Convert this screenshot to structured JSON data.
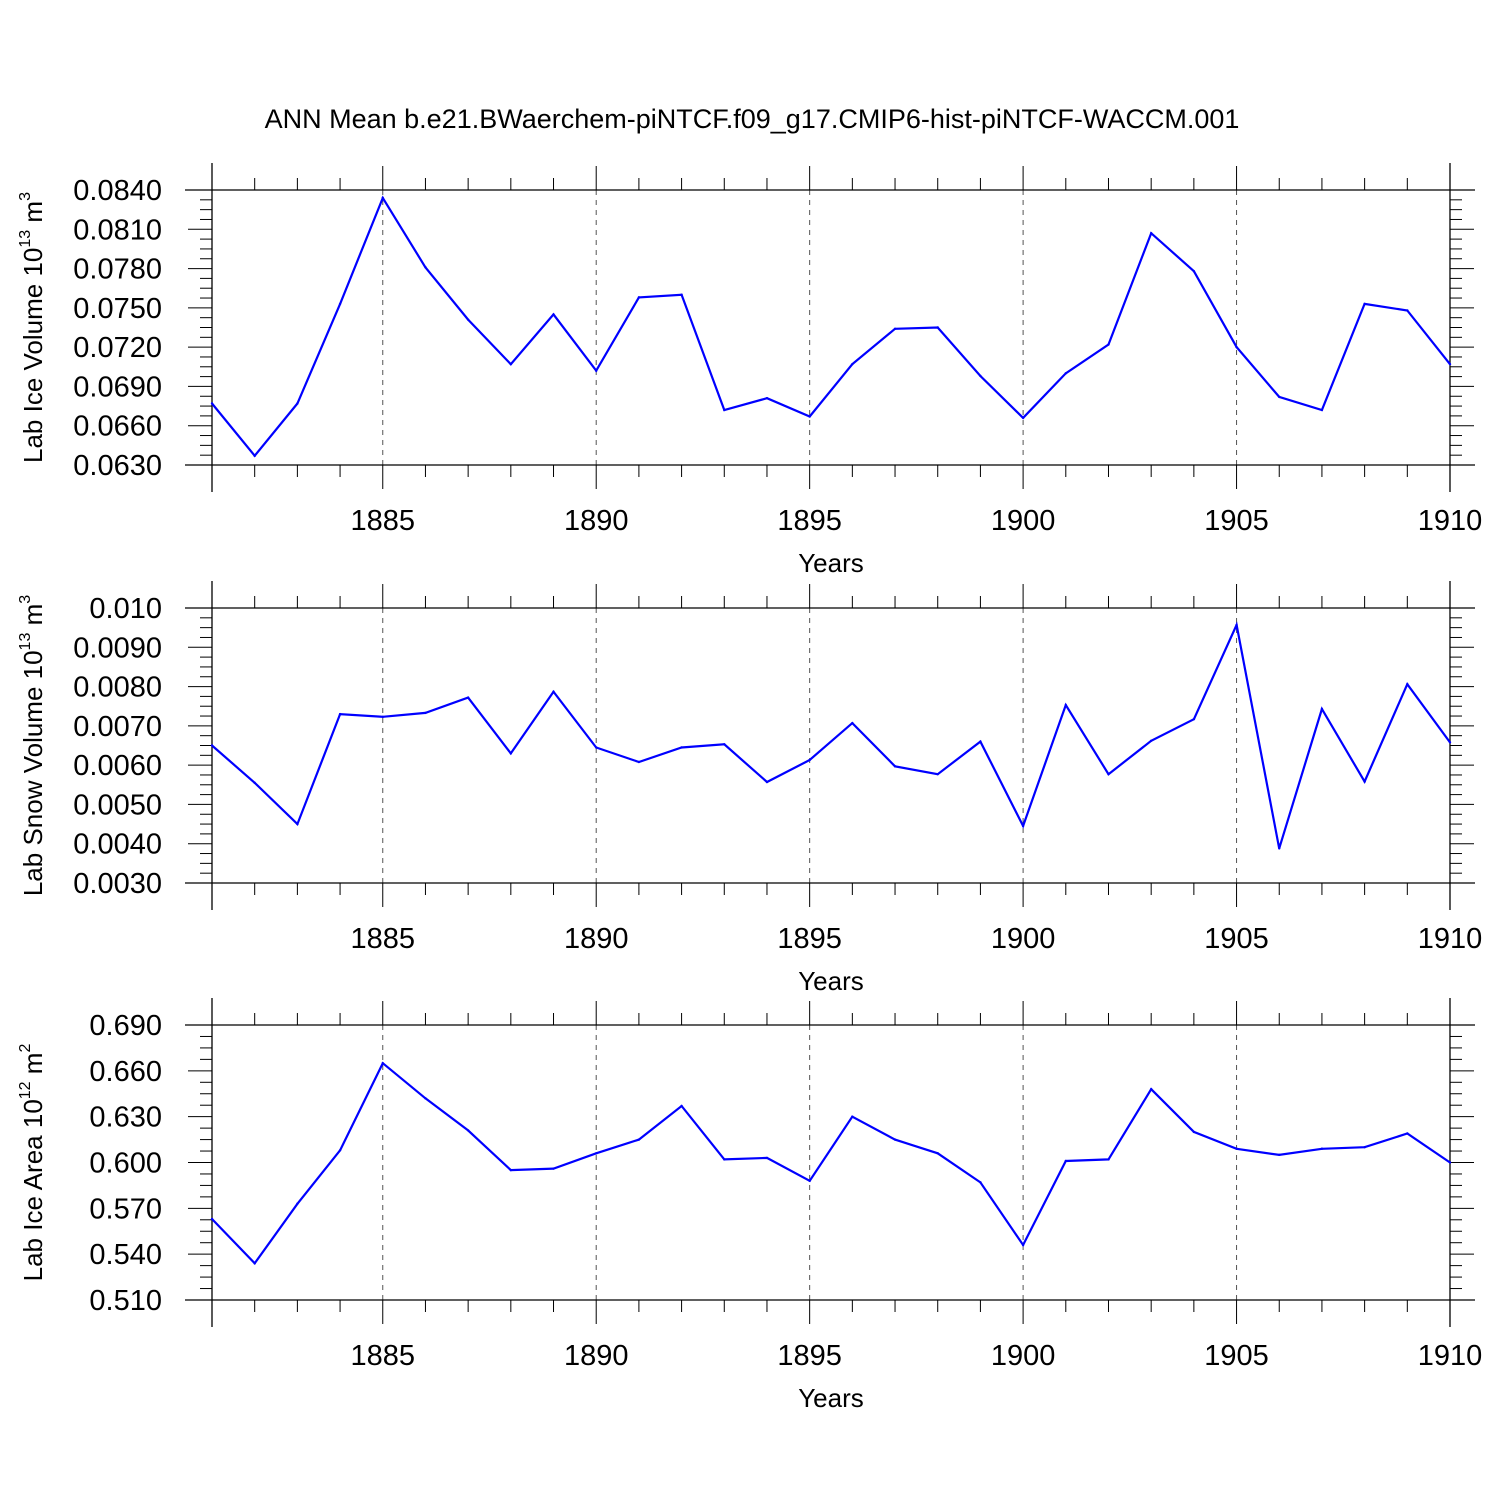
{
  "title": "ANN Mean b.e21.BWaerchem-piNTCF.f09_g17.CMIP6-hist-piNTCF-WACCM.001",
  "colors": {
    "series": "#0000ff",
    "axes": "#000000",
    "grid": "#555555"
  },
  "chart_data": [
    {
      "type": "line",
      "xlabel": "Years",
      "ylabel": {
        "main": "Lab Ice Volume 10",
        "exp": "13",
        "unit": " m",
        "unit_exp": "3"
      },
      "xlim": [
        1881,
        1910
      ],
      "ylim": [
        0.063,
        0.084
      ],
      "x_ticks": [
        1885,
        1890,
        1895,
        1900,
        1905,
        1910
      ],
      "x_tick_labels": [
        "1885",
        "1890",
        "1895",
        "1900",
        "1905",
        "1910"
      ],
      "y_ticks": [
        0.063,
        0.066,
        0.069,
        0.072,
        0.075,
        0.078,
        0.081,
        0.084
      ],
      "y_tick_labels": [
        "0.0630",
        "0.0660",
        "0.0690",
        "0.0720",
        "0.0750",
        "0.0780",
        "0.0810",
        "0.0840"
      ],
      "grid": "vertical-dashed",
      "x": [
        1881,
        1882,
        1883,
        1884,
        1885,
        1886,
        1887,
        1888,
        1889,
        1890,
        1891,
        1892,
        1893,
        1894,
        1895,
        1896,
        1897,
        1898,
        1899,
        1900,
        1901,
        1902,
        1903,
        1904,
        1905,
        1906,
        1907,
        1908,
        1909,
        1910
      ],
      "values": [
        0.0677,
        0.0637,
        0.0677,
        0.0753,
        0.0834,
        0.0781,
        0.0741,
        0.0707,
        0.0745,
        0.0702,
        0.0758,
        0.076,
        0.0672,
        0.0681,
        0.0667,
        0.0707,
        0.0734,
        0.0735,
        0.0698,
        0.0666,
        0.07,
        0.0722,
        0.0807,
        0.0778,
        0.072,
        0.0682,
        0.0672,
        0.0753,
        0.0748,
        0.0707
      ]
    },
    {
      "type": "line",
      "xlabel": "Years",
      "ylabel": {
        "main": "Lab Snow Volume 10",
        "exp": "13",
        "unit": " m",
        "unit_exp": "3"
      },
      "xlim": [
        1881,
        1910
      ],
      "ylim": [
        0.003,
        0.01
      ],
      "x_ticks": [
        1885,
        1890,
        1895,
        1900,
        1905,
        1910
      ],
      "x_tick_labels": [
        "1885",
        "1890",
        "1895",
        "1900",
        "1905",
        "1910"
      ],
      "y_ticks": [
        0.003,
        0.004,
        0.005,
        0.006,
        0.007,
        0.008,
        0.009,
        0.01
      ],
      "y_tick_labels": [
        "0.0030",
        "0.0040",
        "0.0050",
        "0.0060",
        "0.0070",
        "0.0080",
        "0.0090",
        "0.010"
      ],
      "grid": "vertical-dashed",
      "x": [
        1881,
        1882,
        1883,
        1884,
        1885,
        1886,
        1887,
        1888,
        1889,
        1890,
        1891,
        1892,
        1893,
        1894,
        1895,
        1896,
        1897,
        1898,
        1899,
        1900,
        1901,
        1902,
        1903,
        1904,
        1905,
        1906,
        1907,
        1908,
        1909,
        1910
      ],
      "values": [
        0.0065,
        0.00555,
        0.0045,
        0.0073,
        0.00723,
        0.00733,
        0.00772,
        0.0063,
        0.00787,
        0.00645,
        0.00608,
        0.00645,
        0.00653,
        0.00557,
        0.00613,
        0.00707,
        0.00597,
        0.00577,
        0.0066,
        0.00445,
        0.00753,
        0.00577,
        0.00662,
        0.00717,
        0.00957,
        0.00388,
        0.00743,
        0.00558,
        0.00806,
        0.00658
      ]
    },
    {
      "type": "line",
      "xlabel": "Years",
      "ylabel": {
        "main": "Lab Ice Area 10",
        "exp": "12",
        "unit": " m",
        "unit_exp": "2"
      },
      "xlim": [
        1881,
        1910
      ],
      "ylim": [
        0.51,
        0.69
      ],
      "x_ticks": [
        1885,
        1890,
        1895,
        1900,
        1905,
        1910
      ],
      "x_tick_labels": [
        "1885",
        "1890",
        "1895",
        "1900",
        "1905",
        "1910"
      ],
      "y_ticks": [
        0.51,
        0.54,
        0.57,
        0.6,
        0.63,
        0.66,
        0.69
      ],
      "y_tick_labels": [
        "0.510",
        "0.540",
        "0.570",
        "0.600",
        "0.630",
        "0.660",
        "0.690"
      ],
      "grid": "vertical-dashed",
      "x": [
        1881,
        1882,
        1883,
        1884,
        1885,
        1886,
        1887,
        1888,
        1889,
        1890,
        1891,
        1892,
        1893,
        1894,
        1895,
        1896,
        1897,
        1898,
        1899,
        1900,
        1901,
        1902,
        1903,
        1904,
        1905,
        1906,
        1907,
        1908,
        1909,
        1910
      ],
      "values": [
        0.563,
        0.534,
        0.573,
        0.608,
        0.665,
        0.642,
        0.621,
        0.595,
        0.596,
        0.606,
        0.615,
        0.637,
        0.602,
        0.603,
        0.588,
        0.63,
        0.615,
        0.606,
        0.587,
        0.546,
        0.601,
        0.602,
        0.648,
        0.62,
        0.609,
        0.605,
        0.609,
        0.61,
        0.619,
        0.6
      ]
    }
  ]
}
